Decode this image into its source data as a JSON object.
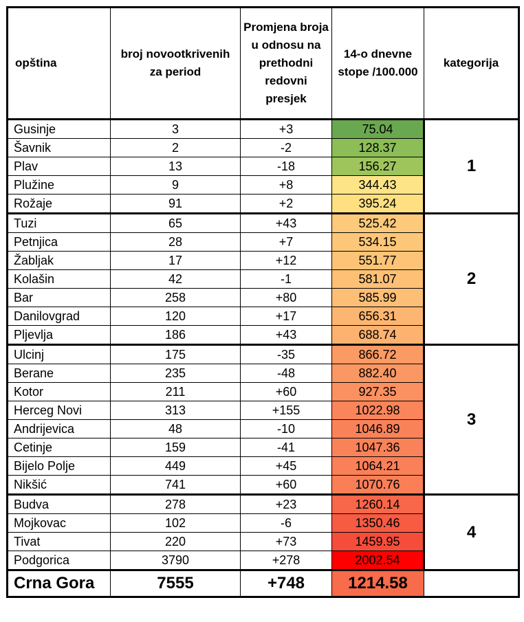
{
  "table": {
    "header": [
      "opština",
      "broj novootkrivenih za period",
      "Promjena broja u odnosu na prethodni redovni presjek",
      "14-o dnevne stope /100.000",
      "kategorija"
    ],
    "groups": [
      {
        "category": "1",
        "rows": [
          {
            "cells": [
              "Gusinje",
              "3",
              "+3",
              "75.04"
            ],
            "color": "#6aa84f"
          },
          {
            "cells": [
              "Šavnik",
              "2",
              "-2",
              "128.37"
            ],
            "color": "#8cbd56"
          },
          {
            "cells": [
              "Plav",
              "13",
              "-18",
              "156.27"
            ],
            "color": "#9ec55c"
          },
          {
            "cells": [
              "Plužine",
              "9",
              "+8",
              "344.43"
            ],
            "color": "#fde486"
          },
          {
            "cells": [
              "Rožaje",
              "91",
              "+2",
              "395.24"
            ],
            "color": "#fee081"
          }
        ]
      },
      {
        "category": "2",
        "rows": [
          {
            "cells": [
              "Tuzi",
              "65",
              "+43",
              "525.42"
            ],
            "color": "#fdc97a"
          },
          {
            "cells": [
              "Petnjica",
              "28",
              "+7",
              "534.15"
            ],
            "color": "#fdc779"
          },
          {
            "cells": [
              "Žabljak",
              "17",
              "+12",
              "551.77"
            ],
            "color": "#fdc477"
          },
          {
            "cells": [
              "Kolašin",
              "42",
              "-1",
              "581.07"
            ],
            "color": "#fdc075"
          },
          {
            "cells": [
              "Bar",
              "258",
              "+80",
              "585.99"
            ],
            "color": "#fdbf75"
          },
          {
            "cells": [
              "Danilovgrad",
              "120",
              "+17",
              "656.31"
            ],
            "color": "#fdb671"
          },
          {
            "cells": [
              "Pljevlja",
              "186",
              "+43",
              "688.74"
            ],
            "color": "#fdb26f"
          }
        ]
      },
      {
        "category": "3",
        "rows": [
          {
            "cells": [
              "Ulcinj",
              "175",
              "-35",
              "866.72"
            ],
            "color": "#fb9a63"
          },
          {
            "cells": [
              "Berane",
              "235",
              "-48",
              "882.40"
            ],
            "color": "#fb9762"
          },
          {
            "cells": [
              "Kotor",
              "211",
              "+60",
              "927.35"
            ],
            "color": "#fb9160"
          },
          {
            "cells": [
              "Herceg Novi",
              "313",
              "+155",
              "1022.98"
            ],
            "color": "#fa855a"
          },
          {
            "cells": [
              "Andrijevica",
              "48",
              "-10",
              "1046.89"
            ],
            "color": "#fa8259"
          },
          {
            "cells": [
              "Cetinje",
              "159",
              "-41",
              "1047.36"
            ],
            "color": "#fa8259"
          },
          {
            "cells": [
              "Bijelo Polje",
              "449",
              "+45",
              "1064.21"
            ],
            "color": "#fa8058"
          },
          {
            "cells": [
              "Nikšić",
              "741",
              "+60",
              "1070.76"
            ],
            "color": "#fa7f57"
          }
        ]
      },
      {
        "category": "4",
        "rows": [
          {
            "cells": [
              "Budva",
              "278",
              "+23",
              "1260.14"
            ],
            "color": "#f86749"
          },
          {
            "cells": [
              "Mojkovac",
              "102",
              "-6",
              "1350.46"
            ],
            "color": "#f75b42"
          },
          {
            "cells": [
              "Tivat",
              "220",
              "+73",
              "1459.95"
            ],
            "color": "#f54d3a"
          },
          {
            "cells": [
              "Podgorica",
              "3790",
              "+278",
              "2002.54"
            ],
            "color": "#fe0000"
          }
        ]
      }
    ],
    "total": {
      "cells": [
        "Crna Gora",
        "7555",
        "+748",
        "1214.58"
      ],
      "color": "#f86b4b"
    }
  }
}
